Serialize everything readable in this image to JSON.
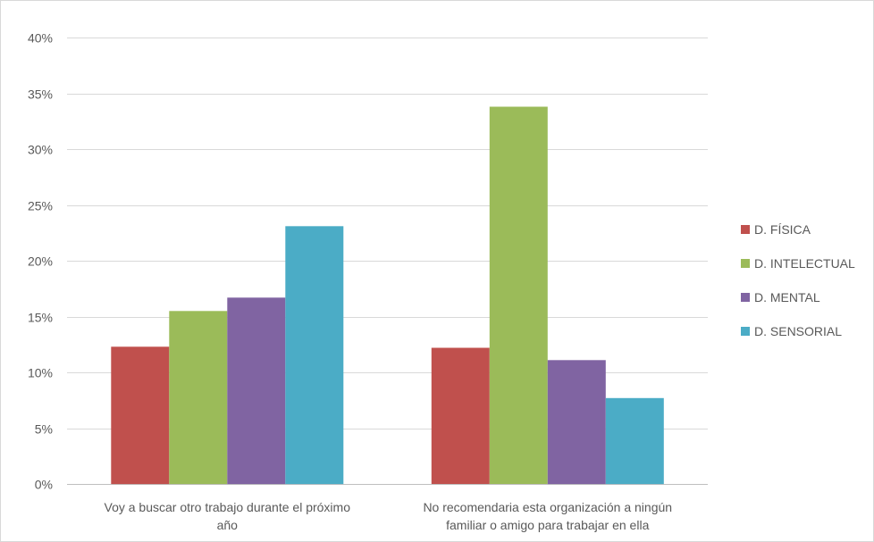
{
  "chart_data": {
    "type": "bar",
    "title": "",
    "xlabel": "",
    "ylabel": "",
    "ylim": [
      0,
      40
    ],
    "ytick_step": 5,
    "ytick_format": "percent",
    "grid": true,
    "legend_position": "right",
    "categories": [
      [
        "Voy a buscar otro trabajo durante el próximo",
        "año"
      ],
      [
        "No recomendaria esta organización a ningún",
        "familiar o amigo para trabajar en ella"
      ]
    ],
    "series": [
      {
        "name": "D. FÍSICA",
        "color": "#C0504D",
        "values": [
          12.3,
          12.2
        ]
      },
      {
        "name": "D. INTELECTUAL",
        "color": "#9BBB59",
        "values": [
          15.5,
          33.8
        ]
      },
      {
        "name": "D. MENTAL",
        "color": "#8064A2",
        "values": [
          16.7,
          11.1
        ]
      },
      {
        "name": "D. SENSORIAL",
        "color": "#4BACC6",
        "values": [
          23.1,
          7.7
        ]
      }
    ]
  }
}
